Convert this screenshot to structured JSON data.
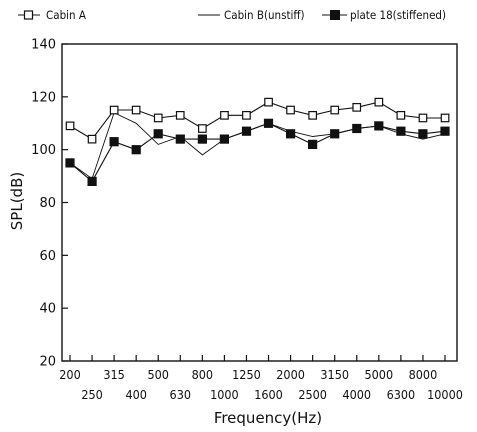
{
  "chart_data": {
    "type": "line",
    "xlabel": "Frequency(Hz)",
    "ylabel": "SPL(dB)",
    "ylim": [
      20,
      140
    ],
    "yticks": [
      "20",
      "40",
      "60",
      "80",
      "100",
      "120",
      "140"
    ],
    "categories": [
      "200",
      "250",
      "315",
      "400",
      "500",
      "630",
      "800",
      "1000",
      "1250",
      "1600",
      "2000",
      "2500",
      "3150",
      "4000",
      "5000",
      "6300",
      "8000",
      "10000"
    ],
    "grid": false,
    "legend_position": "top",
    "series": [
      {
        "name": "Cabin A",
        "marker": "open-square",
        "line_style": "solid",
        "values": [
          109,
          104,
          115,
          115,
          112,
          113,
          108,
          113,
          113,
          118,
          115,
          113,
          115,
          116,
          118,
          113,
          112,
          112
        ]
      },
      {
        "name": "Cabin B(unstiff)",
        "marker": "none",
        "line_style": "solid-thin",
        "values": [
          95,
          89,
          114,
          110,
          102,
          105,
          98,
          104,
          107,
          110,
          107,
          105,
          106,
          108,
          109,
          106,
          104,
          106
        ]
      },
      {
        "name": "plate 18(stiffened)",
        "marker": "filled-square",
        "line_style": "solid",
        "values": [
          95,
          88,
          103,
          100,
          106,
          104,
          104,
          104,
          107,
          110,
          106,
          102,
          106,
          108,
          109,
          107,
          106,
          107
        ]
      }
    ]
  }
}
